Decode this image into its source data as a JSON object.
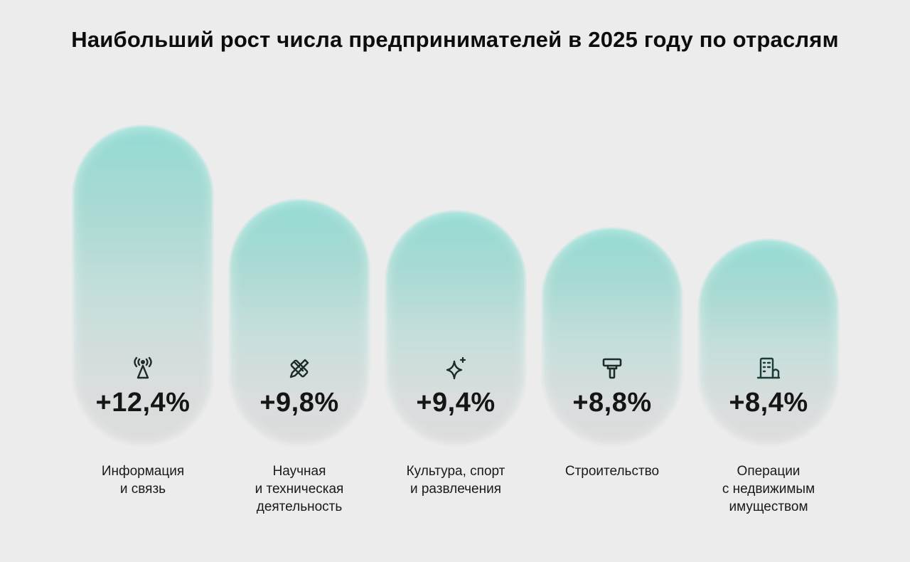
{
  "title": "Наибольший рост числа предпринимателей в 2025 году по отраслям",
  "chart_data": {
    "type": "bar",
    "title": "Наибольший рост числа предпринимателей в 2025 году по отраслям",
    "categories": [
      [
        "Информация",
        "и связь"
      ],
      [
        "Научная",
        "и техническая",
        "деятельность"
      ],
      [
        "Культура, спорт",
        "и развлечения"
      ],
      [
        "Строительство"
      ],
      [
        "Операции",
        "с недвижимым",
        "имуществом"
      ]
    ],
    "values": [
      12.4,
      9.8,
      9.4,
      8.8,
      8.4
    ],
    "value_labels": [
      "+12,4%",
      "+9,8%",
      "+9,4%",
      "+8,8%",
      "+8,4%"
    ],
    "icons": [
      "antenna-icon",
      "ruler-pencil-icon",
      "sparkle-icon",
      "paint-roller-icon",
      "building-icon"
    ],
    "colors": {
      "bar_top": "#95dcd4",
      "bar_bottom": "#dcdcdc",
      "background": "#ececec",
      "text": "#111111"
    },
    "xlabel": "",
    "ylabel": ""
  }
}
